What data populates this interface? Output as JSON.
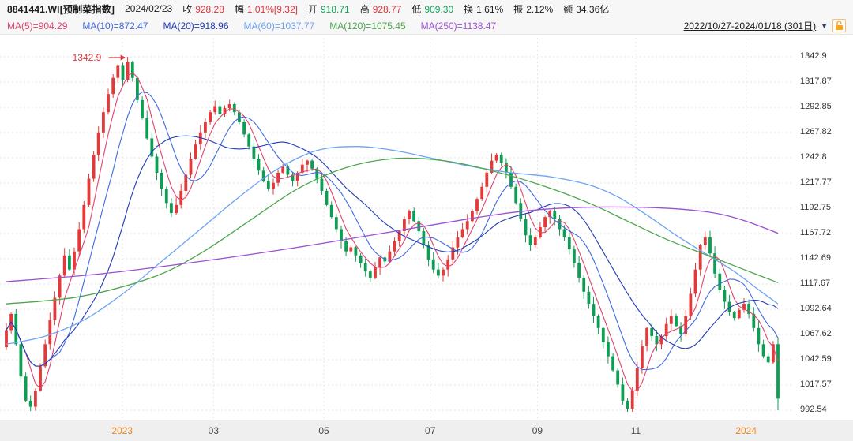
{
  "colors": {
    "up": "#e1333e",
    "down": "#0fa258",
    "plain": "#1c1c1c",
    "up_candle": "#e23a3a",
    "down_candle": "#0d9e53",
    "grid": "#e4e4e6",
    "annotation": "#e1333e",
    "year_label": "#f0851d",
    "lock": "#f5a623"
  },
  "header": {
    "symbol": "8841441.WI[预制菜指数]",
    "date": "2024/02/23",
    "fields": [
      {
        "label": "收",
        "value": "928.28",
        "color": "#e1333e"
      },
      {
        "label": "幅",
        "value": "1.01%[9.32]",
        "color": "#e1333e"
      },
      {
        "label": "开",
        "value": "918.71",
        "color": "#0fa258"
      },
      {
        "label": "高",
        "value": "928.77",
        "color": "#e1333e"
      },
      {
        "label": "低",
        "value": "909.30",
        "color": "#0fa258"
      },
      {
        "label": "换",
        "value": "1.61%",
        "color": "#1c1c1c"
      },
      {
        "label": "振",
        "value": "2.12%",
        "color": "#1c1c1c"
      },
      {
        "label": "额",
        "value": "34.36亿",
        "color": "#1c1c1c"
      }
    ]
  },
  "legend": {
    "items": [
      {
        "text": "MA(5)=904.29",
        "color": "#e0436b"
      },
      {
        "text": "MA(10)=872.47",
        "color": "#3f6ae0"
      },
      {
        "text": "MA(20)=918.96",
        "color": "#1f3bb3"
      },
      {
        "text": "MA(60)=1037.77",
        "color": "#6ba3f5"
      },
      {
        "text": "MA(120)=1075.45",
        "color": "#4ca64c"
      },
      {
        "text": "MA(250)=1138.47",
        "color": "#9b4fd0"
      }
    ]
  },
  "range_selector": {
    "text": "2022/10/27-2024/01/18 (301日)",
    "dropdown_icon": "▼"
  },
  "chart_data": {
    "type": "candlestick",
    "symbol": "8841441.WI",
    "name": "预制菜指数",
    "period": "2022/10/27-2024/01/18 (301日)",
    "grid": true,
    "ylim": [
      992.54,
      1342.9
    ],
    "y_ticks": [
      1342.9,
      1317.87,
      1292.85,
      1267.82,
      1242.8,
      1217.77,
      1192.75,
      1167.72,
      1142.69,
      1117.67,
      1092.64,
      1067.62,
      1042.59,
      1017.57,
      992.54
    ],
    "x_labels": [
      {
        "text": "2023",
        "pos": 0.154,
        "year": true
      },
      {
        "text": "03",
        "pos": 0.269,
        "year": false
      },
      {
        "text": "05",
        "pos": 0.408,
        "year": false
      },
      {
        "text": "07",
        "pos": 0.542,
        "year": false
      },
      {
        "text": "09",
        "pos": 0.677,
        "year": false
      },
      {
        "text": "11",
        "pos": 0.801,
        "year": false
      },
      {
        "text": "2024",
        "pos": 0.94,
        "year": true
      }
    ],
    "annotation": {
      "text": "1342.9",
      "value": 1342.9,
      "peak_index": 25
    },
    "first_open": 1055,
    "closes": [
      1072,
      1088,
      1058,
      1026,
      1002,
      996,
      1012,
      1036,
      1058,
      1082,
      1104,
      1126,
      1146,
      1132,
      1150,
      1172,
      1196,
      1222,
      1246,
      1268,
      1288,
      1306,
      1322,
      1334,
      1320,
      1338,
      1322,
      1300,
      1282,
      1262,
      1244,
      1228,
      1212,
      1198,
      1188,
      1196,
      1210,
      1226,
      1242,
      1256,
      1268,
      1278,
      1288,
      1294,
      1286,
      1292,
      1296,
      1288,
      1278,
      1266,
      1254,
      1242,
      1230,
      1220,
      1212,
      1218,
      1228,
      1234,
      1226,
      1220,
      1228,
      1236,
      1240,
      1232,
      1222,
      1210,
      1196,
      1184,
      1172,
      1160,
      1150,
      1154,
      1146,
      1138,
      1130,
      1124,
      1134,
      1144,
      1140,
      1150,
      1160,
      1170,
      1182,
      1190,
      1180,
      1170,
      1156,
      1142,
      1132,
      1126,
      1132,
      1142,
      1154,
      1164,
      1172,
      1180,
      1190,
      1202,
      1214,
      1228,
      1240,
      1246,
      1238,
      1228,
      1214,
      1198,
      1182,
      1166,
      1156,
      1164,
      1174,
      1184,
      1190,
      1182,
      1172,
      1164,
      1152,
      1138,
      1124,
      1110,
      1098,
      1086,
      1074,
      1060,
      1046,
      1032,
      1018,
      1002,
      994,
      1012,
      1034,
      1056,
      1074,
      1066,
      1058,
      1066,
      1078,
      1086,
      1076,
      1068,
      1086,
      1108,
      1132,
      1156,
      1164,
      1148,
      1128,
      1112,
      1100,
      1090,
      1084,
      1092,
      1098,
      1088,
      1074,
      1058,
      1046,
      1040,
      1058,
      1004
    ],
    "ma_computed": [
      {
        "name": "MA5",
        "window": 5,
        "color": "#e0436b"
      },
      {
        "name": "MA10",
        "window": 10,
        "color": "#3f6ae0"
      },
      {
        "name": "MA20",
        "window": 20,
        "color": "#1f3bb3"
      }
    ],
    "ma_overlays": [
      {
        "name": "MA60",
        "color": "#6ba3f5",
        "points": [
          [
            0,
            1058
          ],
          [
            8,
            1066
          ],
          [
            16,
            1082
          ],
          [
            24,
            1108
          ],
          [
            32,
            1140
          ],
          [
            40,
            1172
          ],
          [
            48,
            1204
          ],
          [
            56,
            1232
          ],
          [
            64,
            1250
          ],
          [
            72,
            1254
          ],
          [
            80,
            1250
          ],
          [
            88,
            1242
          ],
          [
            96,
            1234
          ],
          [
            104,
            1228
          ],
          [
            112,
            1224
          ],
          [
            120,
            1216
          ],
          [
            126,
            1204
          ],
          [
            132,
            1186
          ],
          [
            138,
            1166
          ],
          [
            144,
            1148
          ],
          [
            150,
            1130
          ],
          [
            155,
            1112
          ],
          [
            159,
            1098
          ]
        ]
      },
      {
        "name": "MA120",
        "color": "#4ca64c",
        "points": [
          [
            0,
            1098
          ],
          [
            15,
            1105
          ],
          [
            30,
            1124
          ],
          [
            40,
            1148
          ],
          [
            50,
            1180
          ],
          [
            60,
            1212
          ],
          [
            70,
            1233
          ],
          [
            80,
            1242
          ],
          [
            90,
            1240
          ],
          [
            100,
            1230
          ],
          [
            110,
            1216
          ],
          [
            120,
            1198
          ],
          [
            128,
            1180
          ],
          [
            136,
            1162
          ],
          [
            144,
            1147
          ],
          [
            152,
            1132
          ],
          [
            159,
            1119
          ]
        ]
      },
      {
        "name": "MA250",
        "color": "#9b4fd0",
        "points": [
          [
            0,
            1120
          ],
          [
            20,
            1128
          ],
          [
            40,
            1140
          ],
          [
            60,
            1154
          ],
          [
            80,
            1170
          ],
          [
            95,
            1182
          ],
          [
            105,
            1189
          ],
          [
            115,
            1193
          ],
          [
            125,
            1194
          ],
          [
            135,
            1193
          ],
          [
            143,
            1190
          ],
          [
            148,
            1186
          ],
          [
            153,
            1179
          ],
          [
            159,
            1168
          ]
        ]
      }
    ]
  }
}
